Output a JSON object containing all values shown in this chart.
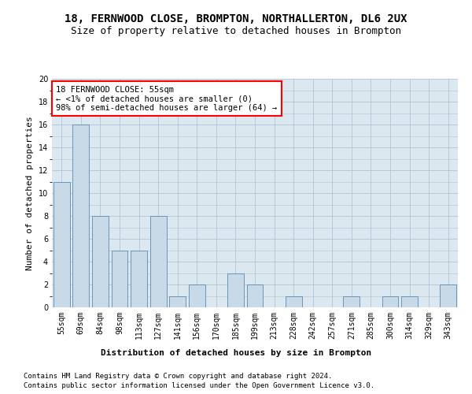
{
  "title": "18, FERNWOOD CLOSE, BROMPTON, NORTHALLERTON, DL6 2UX",
  "subtitle": "Size of property relative to detached houses in Brompton",
  "xlabel": "Distribution of detached houses by size in Brompton",
  "ylabel": "Number of detached properties",
  "categories": [
    "55sqm",
    "69sqm",
    "84sqm",
    "98sqm",
    "113sqm",
    "127sqm",
    "141sqm",
    "156sqm",
    "170sqm",
    "185sqm",
    "199sqm",
    "213sqm",
    "228sqm",
    "242sqm",
    "257sqm",
    "271sqm",
    "285sqm",
    "300sqm",
    "314sqm",
    "329sqm",
    "343sqm"
  ],
  "values": [
    11,
    16,
    8,
    5,
    5,
    8,
    1,
    2,
    0,
    3,
    2,
    0,
    1,
    0,
    0,
    1,
    0,
    1,
    1,
    0,
    2
  ],
  "bar_color": "#c8d9e8",
  "bar_edge_color": "#5a8ab0",
  "annotation_text": "18 FERNWOOD CLOSE: 55sqm\n← <1% of detached houses are smaller (0)\n98% of semi-detached houses are larger (64) →",
  "annotation_box_color": "white",
  "annotation_box_edge": "red",
  "ylim": [
    0,
    20
  ],
  "yticks": [
    0,
    2,
    4,
    6,
    8,
    10,
    12,
    14,
    16,
    18,
    20
  ],
  "footer1": "Contains HM Land Registry data © Crown copyright and database right 2024.",
  "footer2": "Contains public sector information licensed under the Open Government Licence v3.0.",
  "grid_color": "#b0c4d8",
  "bg_color": "#dce8f0",
  "title_fontsize": 10,
  "subtitle_fontsize": 9,
  "axis_label_fontsize": 8,
  "tick_fontsize": 7,
  "annotation_fontsize": 7.5,
  "footer_fontsize": 6.5
}
